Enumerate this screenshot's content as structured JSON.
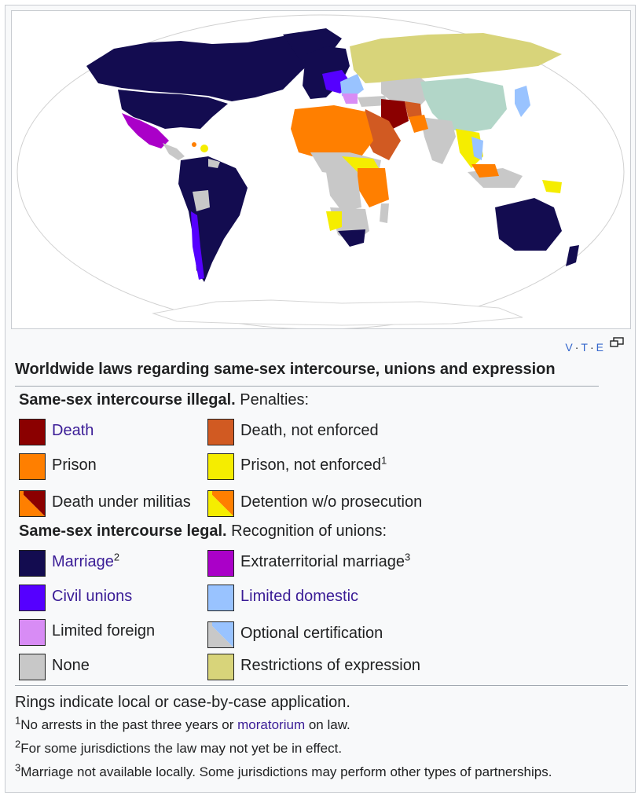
{
  "map": {
    "colors": {
      "death": "#8b0000",
      "death_not_enforced": "#d15a22",
      "prison": "#ff7f00",
      "prison_not_enforced": "#f5ed00",
      "marriage": "#130c50",
      "extraterritorial": "#aa00c8",
      "civil_unions": "#5500ff",
      "limited_domestic": "#99c3ff",
      "limited_foreign": "#d88cf5",
      "none": "#c8c8c8",
      "restrictions": "#d8d47a",
      "recognition_china": "#b2d6c8"
    }
  },
  "navbox": {
    "v": "V",
    "t": "T",
    "e": "E"
  },
  "title": "Worldwide laws regarding same-sex intercourse, unions and expression",
  "illegal": {
    "heading": "Same-sex intercourse illegal.",
    "sub": " Penalties:"
  },
  "legal": {
    "heading": "Same-sex intercourse legal.",
    "sub": " Recognition of unions:"
  },
  "legend": {
    "death": "Death",
    "death_not_enforced": "Death, not enforced",
    "prison": "Prison",
    "prison_not_enforced": "Prison, not enforced",
    "prison_not_enforced_sup": "1",
    "death_militias": "Death under militias",
    "detention": "Detention w/o prosecution",
    "marriage": "Marriage",
    "marriage_sup": "2",
    "extraterritorial": "Extraterritorial marriage",
    "extraterritorial_sup": "3",
    "civil_unions": "Civil unions",
    "limited_domestic": "Limited domestic",
    "limited_foreign": "Limited foreign",
    "optional_certification": "Optional certification",
    "none": "None",
    "restrictions": "Restrictions of expression"
  },
  "notes": {
    "rings": "Rings indicate local or case-by-case application.",
    "n1_sup": "1",
    "n1_pre": "No arrests in the past three years or ",
    "n1_link": "moratorium",
    "n1_post": " on law.",
    "n2_sup": "2",
    "n2": "For some jurisdictions the law may not yet be in effect.",
    "n3_sup": "3",
    "n3": "Marriage not available locally. Some jurisdictions may perform other types of partnerships."
  }
}
